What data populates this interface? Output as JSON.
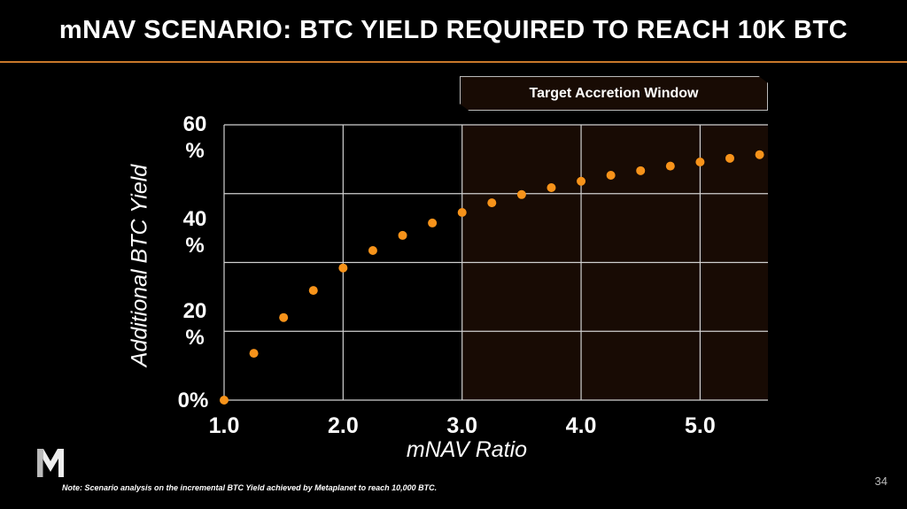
{
  "title": "mNAV SCENARIO: BTC YIELD REQUIRED TO REACH 10K BTC",
  "page_number": "34",
  "note": "Note: Scenario analysis on the incremental BTC Yield achieved by Metaplanet to reach 10,000 BTC.",
  "logo_text": "M",
  "colors": {
    "accent": "#f7931a",
    "rule": "#c9782a",
    "window_fill": "#180b04",
    "grid": "#d0d0d0"
  },
  "chart_data": {
    "type": "scatter",
    "title": "mNAV SCENARIO: BTC YIELD REQUIRED TO REACH 10K BTC",
    "xlabel": "mNAV Ratio",
    "ylabel": "Additional BTC Yield",
    "xlim": [
      1.0,
      5.57
    ],
    "ylim": [
      0,
      60
    ],
    "x_ticks": [
      1.0,
      2.0,
      3.0,
      4.0,
      5.0
    ],
    "x_tick_labels": [
      "1.0",
      "2.0",
      "3.0",
      "4.0",
      "5.0"
    ],
    "y_gridlines": [
      0,
      15,
      30,
      45,
      60
    ],
    "y_tick_labels": [
      "60\n%",
      "40\n%",
      "20\n%",
      "0%"
    ],
    "grid": true,
    "annotation": {
      "label": "Target Accretion Window",
      "x_range": [
        3.0,
        5.57
      ]
    },
    "x": [
      1.0,
      1.25,
      1.5,
      1.75,
      2.0,
      2.25,
      2.5,
      2.75,
      3.0,
      3.25,
      3.5,
      3.75,
      4.0,
      4.25,
      4.5,
      4.75,
      5.0,
      5.25,
      5.5
    ],
    "y": [
      0,
      10.2,
      18.0,
      23.9,
      28.8,
      32.6,
      35.9,
      38.6,
      40.9,
      43.0,
      44.8,
      46.3,
      47.7,
      49.0,
      50.0,
      51.0,
      51.9,
      52.7,
      53.5
    ]
  }
}
